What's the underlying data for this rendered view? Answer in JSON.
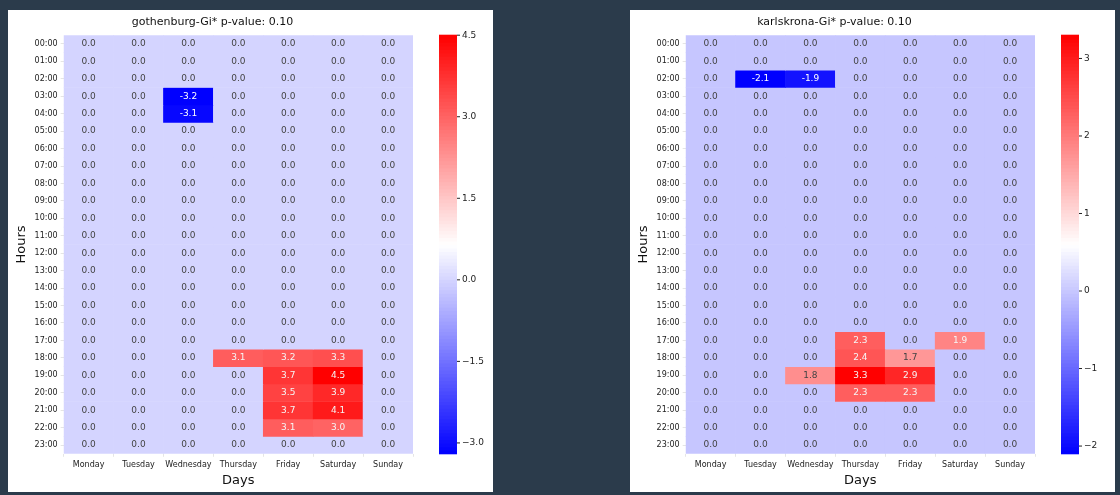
{
  "chart_data": [
    {
      "type": "heatmap",
      "title": "gothenburg-Gi* p-value: 0.10",
      "xlabel": "Days",
      "ylabel": "Hours",
      "categories": [
        "Monday",
        "Tuesday",
        "Wednesday",
        "Thursday",
        "Friday",
        "Saturday",
        "Sunday"
      ],
      "y_categories": [
        "00:00",
        "01:00",
        "02:00",
        "03:00",
        "04:00",
        "05:00",
        "06:00",
        "07:00",
        "08:00",
        "09:00",
        "10:00",
        "11:00",
        "12:00",
        "13:00",
        "14:00",
        "15:00",
        "16:00",
        "17:00",
        "18:00",
        "19:00",
        "20:00",
        "21:00",
        "22:00",
        "23:00"
      ],
      "cells": [
        [
          0,
          0,
          0,
          0,
          0,
          0,
          0
        ],
        [
          0,
          0,
          0,
          0,
          0,
          0,
          0
        ],
        [
          0,
          0,
          0,
          0,
          0,
          0,
          0
        ],
        [
          0,
          0,
          -3.2,
          0,
          0,
          0,
          0
        ],
        [
          0,
          0,
          -3.1,
          0,
          0,
          0,
          0
        ],
        [
          0,
          0,
          0,
          0,
          0,
          0,
          0
        ],
        [
          0,
          0,
          0,
          0,
          0,
          0,
          0
        ],
        [
          0,
          0,
          0,
          0,
          0,
          0,
          0
        ],
        [
          0,
          0,
          0,
          0,
          0,
          0,
          0
        ],
        [
          0,
          0,
          0,
          0,
          0,
          0,
          0
        ],
        [
          0,
          0,
          0,
          0,
          0,
          0,
          0
        ],
        [
          0,
          0,
          0,
          0,
          0,
          0,
          0
        ],
        [
          0,
          0,
          0,
          0,
          0,
          0,
          0
        ],
        [
          0,
          0,
          0,
          0,
          0,
          0,
          0
        ],
        [
          0,
          0,
          0,
          0,
          0,
          0,
          0
        ],
        [
          0,
          0,
          0,
          0,
          0,
          0,
          0
        ],
        [
          0,
          0,
          0,
          0,
          0,
          0,
          0
        ],
        [
          0,
          0,
          0,
          0,
          0,
          0,
          0
        ],
        [
          0,
          0,
          0,
          3.1,
          3.2,
          3.3,
          0
        ],
        [
          0,
          0,
          0,
          0,
          3.7,
          4.5,
          0
        ],
        [
          0,
          0,
          0,
          0,
          3.5,
          3.9,
          0
        ],
        [
          0,
          0,
          0,
          0,
          3.7,
          4.1,
          0
        ],
        [
          0,
          0,
          0,
          0,
          3.1,
          3.0,
          0
        ],
        [
          0,
          0,
          0,
          0,
          0,
          0,
          0
        ]
      ],
      "cell_labels": [
        [
          "0.0",
          "0.0",
          "0.0",
          "0.0",
          "0.0",
          "0.0",
          "0.0"
        ],
        [
          "0.0",
          "0.0",
          "0.0",
          "0.0",
          "0.0",
          "0.0",
          "0.0"
        ],
        [
          "0.0",
          "0.0",
          "0.0",
          "0.0",
          "0.0",
          "0.0",
          "0.0"
        ],
        [
          "0.0",
          "0.0",
          "-3.2",
          "0.0",
          "0.0",
          "0.0",
          "0.0"
        ],
        [
          "0.0",
          "0.0",
          "-3.1",
          "0.0",
          "0.0",
          "0.0",
          "0.0"
        ],
        [
          "0.0",
          "0.0",
          "0.0",
          "0.0",
          "0.0",
          "0.0",
          "0.0"
        ],
        [
          "0.0",
          "0.0",
          "0.0",
          "0.0",
          "0.0",
          "0.0",
          "0.0"
        ],
        [
          "0.0",
          "0.0",
          "0.0",
          "0.0",
          "0.0",
          "0.0",
          "0.0"
        ],
        [
          "0.0",
          "0.0",
          "0.0",
          "0.0",
          "0.0",
          "0.0",
          "0.0"
        ],
        [
          "0.0",
          "0.0",
          "0.0",
          "0.0",
          "0.0",
          "0.0",
          "0.0"
        ],
        [
          "0.0",
          "0.0",
          "0.0",
          "0.0",
          "0.0",
          "0.0",
          "0.0"
        ],
        [
          "0.0",
          "0.0",
          "0.0",
          "0.0",
          "0.0",
          "0.0",
          "0.0"
        ],
        [
          "0.0",
          "0.0",
          "0.0",
          "0.0",
          "0.0",
          "0.0",
          "0.0"
        ],
        [
          "0.0",
          "0.0",
          "0.0",
          "0.0",
          "0.0",
          "0.0",
          "0.0"
        ],
        [
          "0.0",
          "0.0",
          "0.0",
          "0.0",
          "0.0",
          "0.0",
          "0.0"
        ],
        [
          "0.0",
          "0.0",
          "0.0",
          "0.0",
          "0.0",
          "0.0",
          "0.0"
        ],
        [
          "0.0",
          "0.0",
          "0.0",
          "0.0",
          "0.0",
          "0.0",
          "0.0"
        ],
        [
          "0.0",
          "0.0",
          "0.0",
          "0.0",
          "0.0",
          "0.0",
          "0.0"
        ],
        [
          "0.0",
          "0.0",
          "0.0",
          "3.1",
          "3.2",
          "3.3",
          "0.0"
        ],
        [
          "0.0",
          "0.0",
          "0.0",
          "0.0",
          "3.7",
          "4.5",
          "0.0"
        ],
        [
          "0.0",
          "0.0",
          "0.0",
          "0.0",
          "3.5",
          "3.9",
          "0.0"
        ],
        [
          "0.0",
          "0.0",
          "0.0",
          "0.0",
          "3.7",
          "4.1",
          "0.0"
        ],
        [
          "0.0",
          "0.0",
          "0.0",
          "0.0",
          "3.1",
          "3.0",
          "0.0"
        ],
        [
          "0.0",
          "0.0",
          "0.0",
          "0.0",
          "0.0",
          "0.0",
          "0.0"
        ]
      ],
      "clim": [
        -3.2,
        4.5
      ],
      "cticks": [
        {
          "value": -3,
          "label": "−3.0"
        },
        {
          "value": -1.5,
          "label": "−1.5"
        },
        {
          "value": 0,
          "label": "0.0"
        },
        {
          "value": 1.5,
          "label": "1.5"
        },
        {
          "value": 3,
          "label": "3.0"
        },
        {
          "value": 4.5,
          "label": "4.5"
        }
      ]
    },
    {
      "type": "heatmap",
      "title": "karlskrona-Gi* p-value: 0.10",
      "xlabel": "Days",
      "ylabel": "Hours",
      "categories": [
        "Monday",
        "Tuesday",
        "Wednesday",
        "Thursday",
        "Friday",
        "Saturday",
        "Sunday"
      ],
      "y_categories": [
        "00:00",
        "01:00",
        "02:00",
        "03:00",
        "04:00",
        "05:00",
        "06:00",
        "07:00",
        "08:00",
        "09:00",
        "10:00",
        "11:00",
        "12:00",
        "13:00",
        "14:00",
        "15:00",
        "16:00",
        "17:00",
        "18:00",
        "19:00",
        "20:00",
        "21:00",
        "22:00",
        "23:00"
      ],
      "cells": [
        [
          0,
          0,
          0,
          0,
          0,
          0,
          0
        ],
        [
          0,
          0,
          0,
          0,
          0,
          0,
          0
        ],
        [
          0,
          -2.1,
          -1.9,
          0,
          0,
          0,
          0
        ],
        [
          0,
          0,
          0,
          0,
          0,
          0,
          0
        ],
        [
          0,
          0,
          0,
          0,
          0,
          0,
          0
        ],
        [
          0,
          0,
          0,
          0,
          0,
          0,
          0
        ],
        [
          0,
          0,
          0,
          0,
          0,
          0,
          0
        ],
        [
          0,
          0,
          0,
          0,
          0,
          0,
          0
        ],
        [
          0,
          0,
          0,
          0,
          0,
          0,
          0
        ],
        [
          0,
          0,
          0,
          0,
          0,
          0,
          0
        ],
        [
          0,
          0,
          0,
          0,
          0,
          0,
          0
        ],
        [
          0,
          0,
          0,
          0,
          0,
          0,
          0
        ],
        [
          0,
          0,
          0,
          0,
          0,
          0,
          0
        ],
        [
          0,
          0,
          0,
          0,
          0,
          0,
          0
        ],
        [
          0,
          0,
          0,
          0,
          0,
          0,
          0
        ],
        [
          0,
          0,
          0,
          0,
          0,
          0,
          0
        ],
        [
          0,
          0,
          0,
          0,
          0,
          0,
          0
        ],
        [
          0,
          0,
          0,
          2.3,
          0,
          1.9,
          0
        ],
        [
          0,
          0,
          0,
          2.4,
          1.7,
          0,
          0
        ],
        [
          0,
          0,
          1.8,
          3.3,
          2.9,
          0,
          0
        ],
        [
          0,
          0,
          0,
          2.3,
          2.3,
          0,
          0
        ],
        [
          0,
          0,
          0,
          0,
          0,
          0,
          0
        ],
        [
          0,
          0,
          0,
          0,
          0,
          0,
          0
        ],
        [
          0,
          0,
          0,
          0,
          0,
          0,
          0
        ]
      ],
      "cell_labels": [
        [
          "0.0",
          "0.0",
          "0.0",
          "0.0",
          "0.0",
          "0.0",
          "0.0"
        ],
        [
          "0.0",
          "0.0",
          "0.0",
          "0.0",
          "0.0",
          "0.0",
          "0.0"
        ],
        [
          "0.0",
          "-2.1",
          "-1.9",
          "0.0",
          "0.0",
          "0.0",
          "0.0"
        ],
        [
          "0.0",
          "0.0",
          "0.0",
          "0.0",
          "0.0",
          "0.0",
          "0.0"
        ],
        [
          "0.0",
          "0.0",
          "0.0",
          "0.0",
          "0.0",
          "0.0",
          "0.0"
        ],
        [
          "0.0",
          "0.0",
          "0.0",
          "0.0",
          "0.0",
          "0.0",
          "0.0"
        ],
        [
          "0.0",
          "0.0",
          "0.0",
          "0.0",
          "0.0",
          "0.0",
          "0.0"
        ],
        [
          "0.0",
          "0.0",
          "0.0",
          "0.0",
          "0.0",
          "0.0",
          "0.0"
        ],
        [
          "0.0",
          "0.0",
          "0.0",
          "0.0",
          "0.0",
          "0.0",
          "0.0"
        ],
        [
          "0.0",
          "0.0",
          "0.0",
          "0.0",
          "0.0",
          "0.0",
          "0.0"
        ],
        [
          "0.0",
          "0.0",
          "0.0",
          "0.0",
          "0.0",
          "0.0",
          "0.0"
        ],
        [
          "0.0",
          "0.0",
          "0.0",
          "0.0",
          "0.0",
          "0.0",
          "0.0"
        ],
        [
          "0.0",
          "0.0",
          "0.0",
          "0.0",
          "0.0",
          "0.0",
          "0.0"
        ],
        [
          "0.0",
          "0.0",
          "0.0",
          "0.0",
          "0.0",
          "0.0",
          "0.0"
        ],
        [
          "0.0",
          "0.0",
          "0.0",
          "0.0",
          "0.0",
          "0.0",
          "0.0"
        ],
        [
          "0.0",
          "0.0",
          "0.0",
          "0.0",
          "0.0",
          "0.0",
          "0.0"
        ],
        [
          "0.0",
          "0.0",
          "0.0",
          "0.0",
          "0.0",
          "0.0",
          "0.0"
        ],
        [
          "0.0",
          "0.0",
          "0.0",
          "2.3",
          "0.0",
          "1.9",
          "0.0"
        ],
        [
          "0.0",
          "0.0",
          "0.0",
          "2.4",
          "1.7",
          "0.0",
          "0.0"
        ],
        [
          "0.0",
          "0.0",
          "1.8",
          "3.3",
          "2.9",
          "0.0",
          "0.0"
        ],
        [
          "0.0",
          "0.0",
          "0.0",
          "2.3",
          "2.3",
          "0.0",
          "0.0"
        ],
        [
          "0.0",
          "0.0",
          "0.0",
          "0.0",
          "0.0",
          "0.0",
          "0.0"
        ],
        [
          "0.0",
          "0.0",
          "0.0",
          "0.0",
          "0.0",
          "0.0",
          "0.0"
        ],
        [
          "0.0",
          "0.0",
          "0.0",
          "0.0",
          "0.0",
          "0.0",
          "0.0"
        ]
      ],
      "clim": [
        -2.1,
        3.3
      ],
      "cticks": [
        {
          "value": -2,
          "label": "−2"
        },
        {
          "value": -1,
          "label": "−1"
        },
        {
          "value": 0,
          "label": "0"
        },
        {
          "value": 1,
          "label": "1"
        },
        {
          "value": 2,
          "label": "2"
        },
        {
          "value": 3,
          "label": "3"
        }
      ]
    }
  ]
}
